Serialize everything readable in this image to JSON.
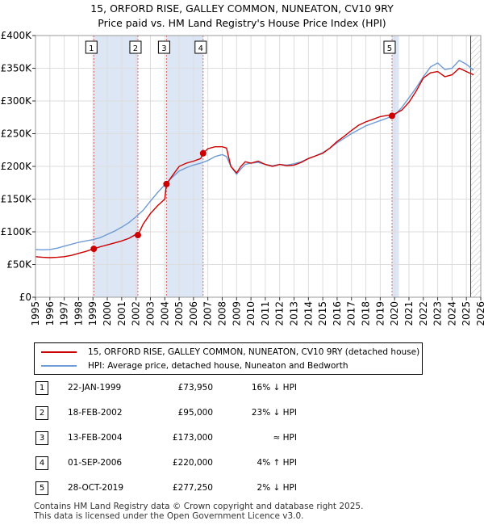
{
  "title_line1": "15, ORFORD RISE, GALLEY COMMON, NUNEATON, CV10 9RY",
  "title_line2": "Price paid vs. HM Land Registry's House Price Index (HPI)",
  "legend": {
    "property": "15, ORFORD RISE, GALLEY COMMON, NUNEATON, CV10 9RY (detached house)",
    "hpi": "HPI: Average price, detached house, Nuneaton and Bedworth"
  },
  "colors": {
    "property": "#cc0000",
    "hpi": "#6f9bd6",
    "shade": "#dde6f5"
  },
  "transactions": [
    {
      "num": "1",
      "date": "22-JAN-1999",
      "price": "£73,950",
      "hpi": "16% ↓ HPI"
    },
    {
      "num": "2",
      "date": "18-FEB-2002",
      "price": "£95,000",
      "hpi": "23% ↓ HPI"
    },
    {
      "num": "3",
      "date": "13-FEB-2004",
      "price": "£173,000",
      "hpi": "≈ HPI"
    },
    {
      "num": "4",
      "date": "01-SEP-2006",
      "price": "£220,000",
      "hpi": "4% ↑ HPI"
    },
    {
      "num": "5",
      "date": "28-OCT-2019",
      "price": "£277,250",
      "hpi": "2% ↓ HPI"
    }
  ],
  "footer_line1": "Contains HM Land Registry data © Crown copyright and database right 2025.",
  "footer_line2": "This data is licensed under the Open Government Licence v3.0.",
  "chart_data": {
    "type": "line",
    "title": "15, ORFORD RISE, GALLEY COMMON, NUNEATON, CV10 9RY",
    "subtitle": "Price paid vs. HM Land Registry's House Price Index (HPI)",
    "xlabel": "",
    "ylabel": "",
    "xlim": [
      1995,
      2026
    ],
    "ylim": [
      0,
      400000
    ],
    "x_ticks": [
      1995,
      1996,
      1997,
      1998,
      1999,
      2000,
      2001,
      2002,
      2003,
      2004,
      2005,
      2006,
      2007,
      2008,
      2009,
      2010,
      2011,
      2012,
      2013,
      2014,
      2015,
      2016,
      2017,
      2018,
      2019,
      2020,
      2021,
      2022,
      2023,
      2024,
      2025,
      2026
    ],
    "y_ticks": [
      {
        "value": 0,
        "label": "£0"
      },
      {
        "value": 50000,
        "label": "£50K"
      },
      {
        "value": 100000,
        "label": "£100K"
      },
      {
        "value": 150000,
        "label": "£150K"
      },
      {
        "value": 200000,
        "label": "£200K"
      },
      {
        "value": 250000,
        "label": "£250K"
      },
      {
        "value": 300000,
        "label": "£300K"
      },
      {
        "value": 350000,
        "label": "£350K"
      },
      {
        "value": 400000,
        "label": "£400K"
      }
    ],
    "grid": true,
    "legend_position": "below",
    "shaded_ranges": [
      [
        1999.06,
        2002.13
      ],
      [
        2004.12,
        2006.67
      ],
      [
        2019.82,
        2020.3
      ]
    ],
    "hatch_from": 2025.3,
    "series": [
      {
        "name": "15, ORFORD RISE, GALLEY COMMON, NUNEATON, CV10 9RY (detached house)",
        "x": [
          1995.0,
          1995.5,
          1996.0,
          1996.5,
          1997.0,
          1997.5,
          1998.0,
          1998.5,
          1999.06,
          1999.5,
          2000.0,
          2000.5,
          2001.0,
          2001.5,
          2002.0,
          2002.13,
          2002.5,
          2003.0,
          2003.5,
          2004.0,
          2004.12,
          2004.5,
          2005.0,
          2005.5,
          2006.0,
          2006.5,
          2006.67,
          2007.0,
          2007.5,
          2008.0,
          2008.3,
          2008.6,
          2009.0,
          2009.3,
          2009.6,
          2010.0,
          2010.5,
          2011.0,
          2011.5,
          2012.0,
          2012.5,
          2013.0,
          2013.5,
          2014.0,
          2014.5,
          2015.0,
          2015.5,
          2016.0,
          2016.5,
          2017.0,
          2017.5,
          2018.0,
          2018.5,
          2019.0,
          2019.5,
          2019.8,
          2019.82,
          2020.0,
          2020.5,
          2021.0,
          2021.5,
          2022.0,
          2022.5,
          2023.0,
          2023.5,
          2024.0,
          2024.5,
          2025.0,
          2025.5
        ],
        "y": [
          62000,
          61000,
          60500,
          61000,
          62000,
          64000,
          67000,
          70000,
          73950,
          77000,
          80000,
          83000,
          86000,
          90000,
          96000,
          95000,
          112000,
          128000,
          140000,
          150000,
          173000,
          185000,
          200000,
          205000,
          208000,
          212000,
          220000,
          227000,
          230000,
          230000,
          228000,
          200000,
          190000,
          200000,
          207000,
          205000,
          208000,
          203000,
          200000,
          203000,
          201000,
          202000,
          206000,
          212000,
          216000,
          220000,
          228000,
          238000,
          246000,
          255000,
          263000,
          268000,
          272000,
          276000,
          278000,
          279000,
          277250,
          280000,
          286000,
          298000,
          315000,
          335000,
          343000,
          345000,
          337000,
          340000,
          350000,
          345000,
          340000
        ]
      },
      {
        "name": "HPI: Average price, detached house, Nuneaton and Bedworth",
        "x": [
          1995.0,
          1995.5,
          1996.0,
          1996.5,
          1997.0,
          1997.5,
          1998.0,
          1998.5,
          1999.0,
          1999.5,
          2000.0,
          2000.5,
          2001.0,
          2001.5,
          2002.0,
          2002.5,
          2003.0,
          2003.5,
          2004.0,
          2004.5,
          2005.0,
          2005.5,
          2006.0,
          2006.5,
          2007.0,
          2007.5,
          2008.0,
          2008.3,
          2008.6,
          2009.0,
          2009.3,
          2009.6,
          2010.0,
          2010.5,
          2011.0,
          2011.5,
          2012.0,
          2012.5,
          2013.0,
          2013.5,
          2014.0,
          2014.5,
          2015.0,
          2015.5,
          2016.0,
          2016.5,
          2017.0,
          2017.5,
          2018.0,
          2018.5,
          2019.0,
          2019.5,
          2020.0,
          2020.5,
          2021.0,
          2021.5,
          2022.0,
          2022.5,
          2023.0,
          2023.5,
          2024.0,
          2024.5,
          2025.0,
          2025.5
        ],
        "y": [
          73000,
          72500,
          73000,
          75000,
          78000,
          81000,
          84000,
          86000,
          88000,
          91000,
          96000,
          101000,
          107000,
          114000,
          123000,
          133000,
          147000,
          160000,
          172000,
          183000,
          193000,
          198000,
          202000,
          205000,
          209000,
          215000,
          218000,
          215000,
          200000,
          188000,
          196000,
          203000,
          205000,
          206000,
          203000,
          201000,
          203000,
          202000,
          204000,
          207000,
          212000,
          216000,
          221000,
          228000,
          236000,
          243000,
          250000,
          256000,
          262000,
          266000,
          270000,
          274000,
          278000,
          290000,
          305000,
          320000,
          337000,
          352000,
          358000,
          348000,
          350000,
          362000,
          356000,
          347000
        ]
      }
    ],
    "sale_points": [
      {
        "label": "1",
        "x": 1999.06,
        "y": 73950
      },
      {
        "label": "2",
        "x": 2002.13,
        "y": 95000
      },
      {
        "label": "3",
        "x": 2004.12,
        "y": 173000
      },
      {
        "label": "4",
        "x": 2006.67,
        "y": 220000
      },
      {
        "label": "5",
        "x": 2019.82,
        "y": 277250
      }
    ]
  }
}
